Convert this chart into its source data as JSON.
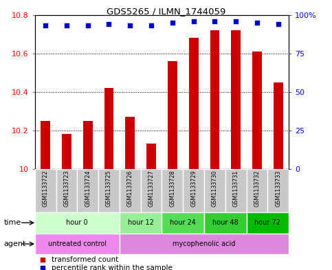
{
  "title": "GDS5265 / ILMN_1744059",
  "samples": [
    "GSM1133722",
    "GSM1133723",
    "GSM1133724",
    "GSM1133725",
    "GSM1133726",
    "GSM1133727",
    "GSM1133728",
    "GSM1133729",
    "GSM1133730",
    "GSM1133731",
    "GSM1133732",
    "GSM1133733"
  ],
  "bar_values": [
    10.25,
    10.18,
    10.25,
    10.42,
    10.27,
    10.13,
    10.56,
    10.68,
    10.72,
    10.72,
    10.61,
    10.45
  ],
  "percentile_values": [
    93,
    93,
    93,
    94,
    93,
    93,
    95,
    96,
    96,
    96,
    95,
    94
  ],
  "bar_color": "#cc0000",
  "dot_color": "#0000cc",
  "ylim_left": [
    10.0,
    10.8
  ],
  "ylim_right": [
    0,
    100
  ],
  "yticks_left": [
    10.0,
    10.2,
    10.4,
    10.6,
    10.8
  ],
  "ytick_labels_left": [
    "10",
    "10.2",
    "10.4",
    "10.6",
    "10.8"
  ],
  "yticks_right": [
    0,
    25,
    50,
    75,
    100
  ],
  "ytick_labels_right": [
    "0",
    "25",
    "50",
    "75",
    "100%"
  ],
  "time_groups": [
    {
      "label": "hour 0",
      "start": 0,
      "end": 4,
      "color": "#ccffcc"
    },
    {
      "label": "hour 12",
      "start": 4,
      "end": 6,
      "color": "#99ee99"
    },
    {
      "label": "hour 24",
      "start": 6,
      "end": 8,
      "color": "#55dd55"
    },
    {
      "label": "hour 48",
      "start": 8,
      "end": 10,
      "color": "#33cc33"
    },
    {
      "label": "hour 72",
      "start": 10,
      "end": 12,
      "color": "#00bb00"
    }
  ],
  "agent_groups": [
    {
      "label": "untreated control",
      "start": 0,
      "end": 4,
      "color": "#ee88ee"
    },
    {
      "label": "mycophenolic acid",
      "start": 4,
      "end": 12,
      "color": "#dd88dd"
    }
  ],
  "legend_bar_label": "transformed count",
  "legend_dot_label": "percentile rank within the sample",
  "time_label": "time",
  "agent_label": "agent",
  "sample_bg_color": "#c8c8c8",
  "background_color": "#ffffff",
  "bar_width": 0.45
}
